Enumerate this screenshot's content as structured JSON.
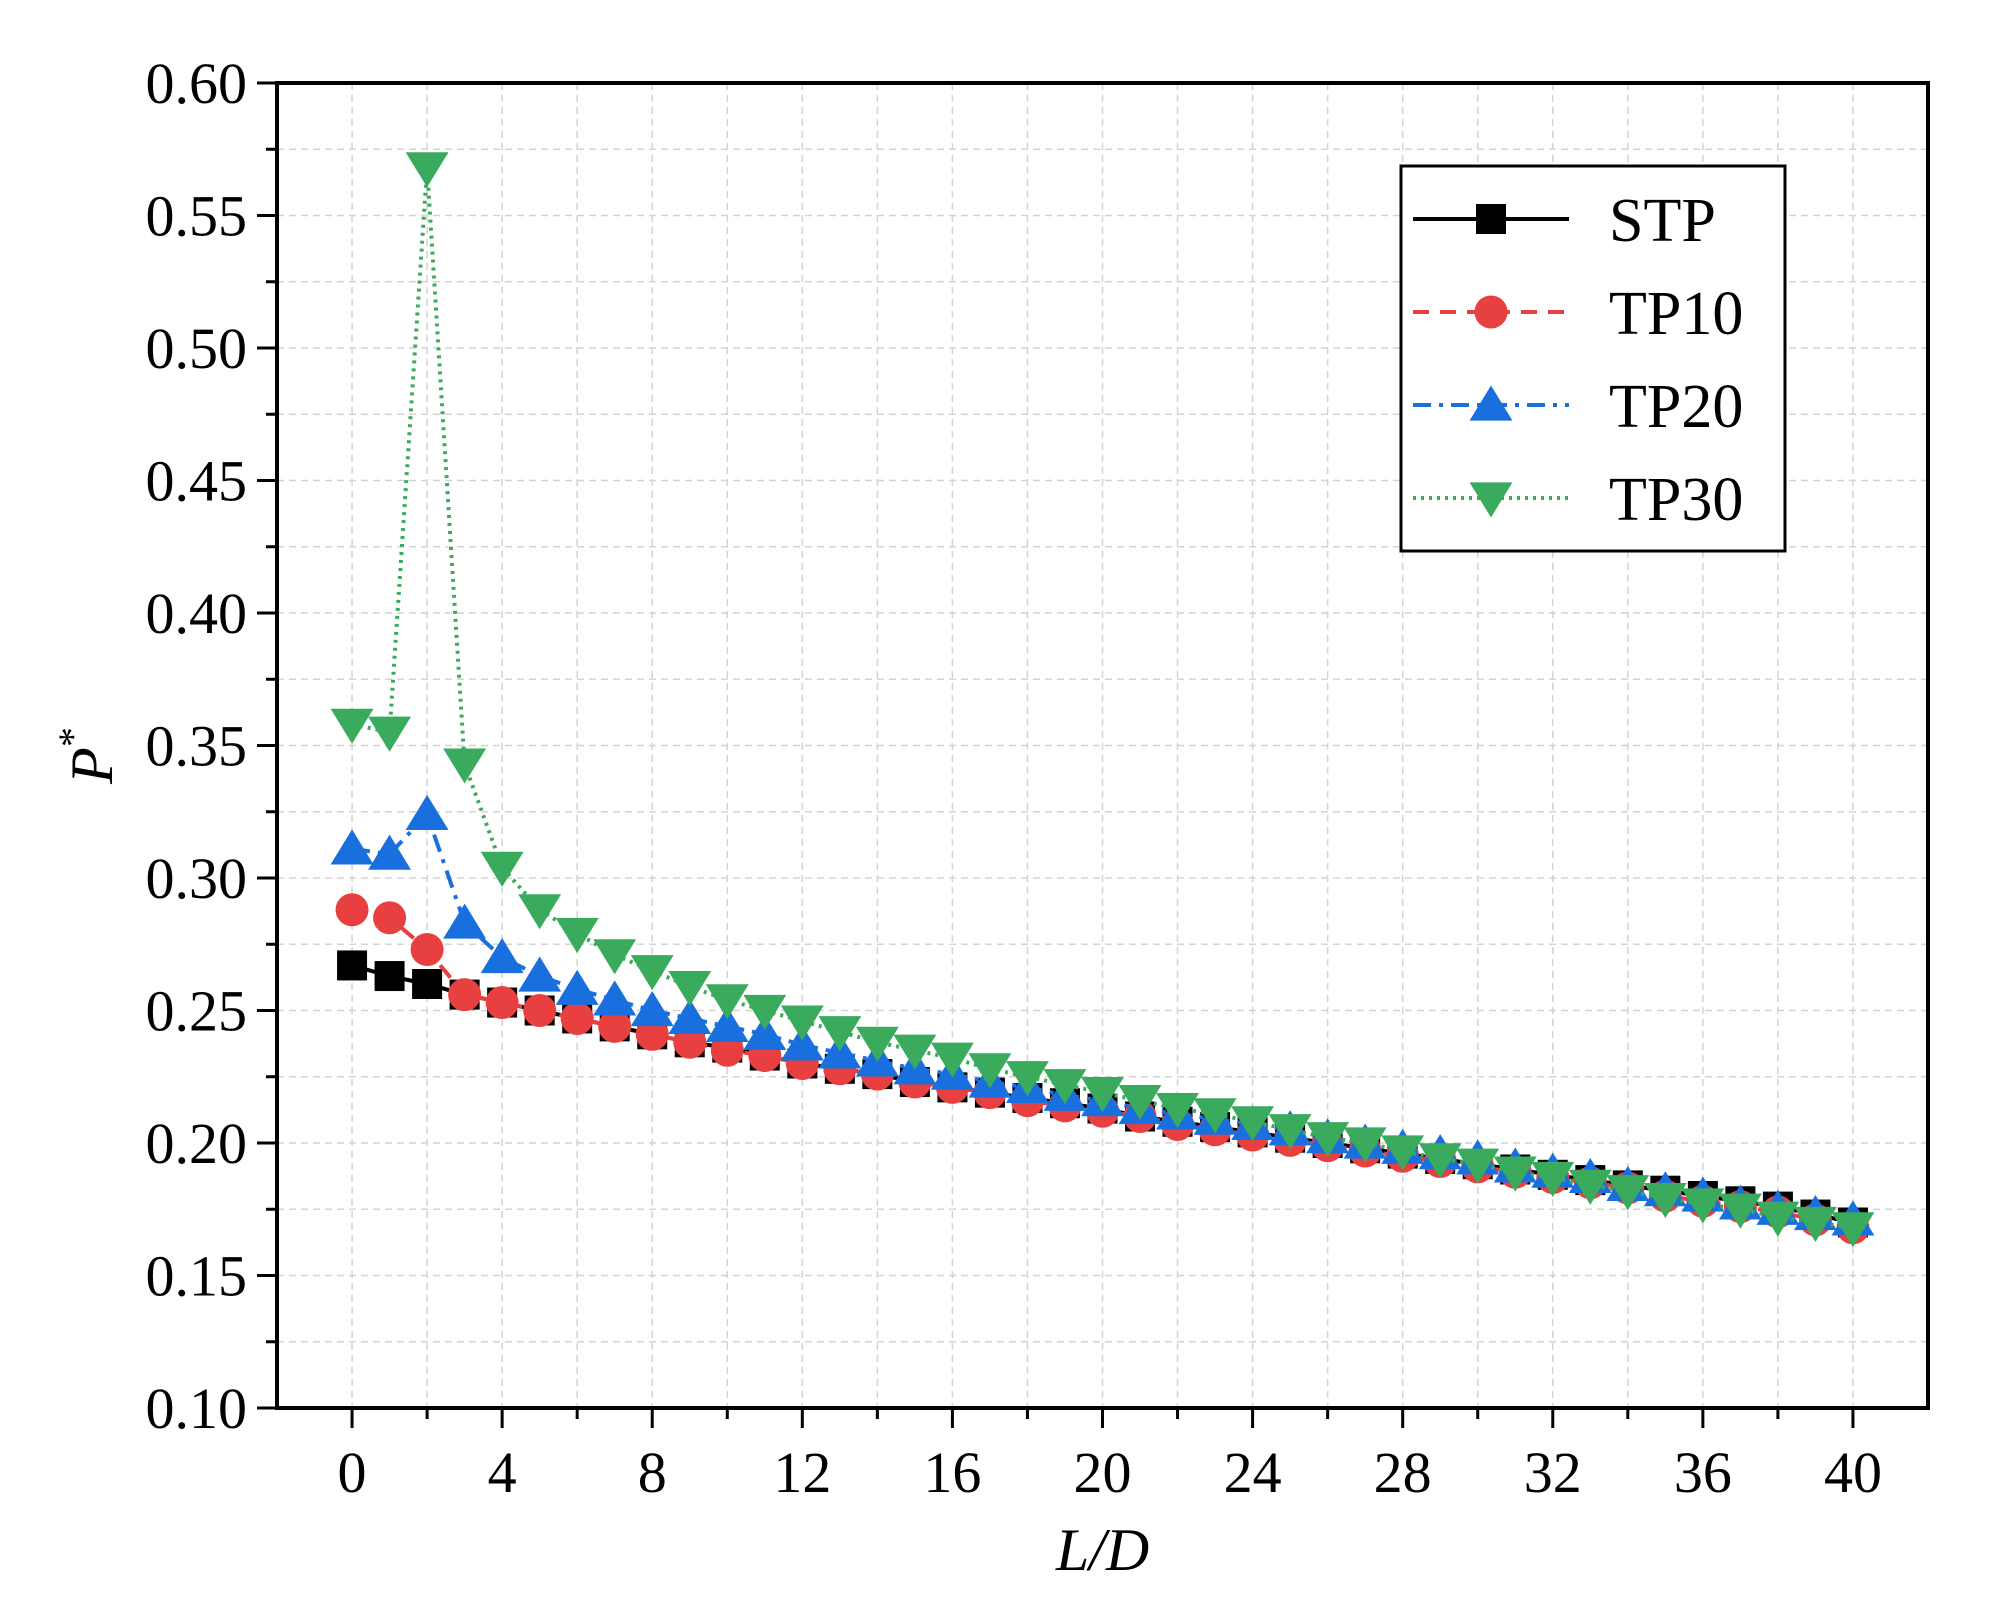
{
  "chart_data": {
    "type": "line",
    "title": "",
    "xlabel": "L/D",
    "ylabel": "P",
    "ylabel_superscript": "*",
    "xlim": [
      -2,
      42
    ],
    "ylim": [
      0.1,
      0.6
    ],
    "x_ticks": [
      "0",
      "4",
      "8",
      "12",
      "16",
      "20",
      "24",
      "28",
      "32",
      "36",
      "40"
    ],
    "y_ticks": [
      "0.10",
      "0.15",
      "0.20",
      "0.25",
      "0.30",
      "0.35",
      "0.40",
      "0.45",
      "0.50",
      "0.55",
      "0.60"
    ],
    "grid": true,
    "legend_position": "top-right",
    "x": [
      0,
      1,
      2,
      3,
      4,
      5,
      6,
      7,
      8,
      9,
      10,
      11,
      12,
      13,
      14,
      15,
      16,
      17,
      18,
      19,
      20,
      21,
      22,
      23,
      24,
      25,
      26,
      27,
      28,
      29,
      30,
      31,
      32,
      33,
      34,
      35,
      36,
      37,
      38,
      39,
      40
    ],
    "series": [
      {
        "name": "STP",
        "color": "#000000",
        "marker": "square",
        "line": "solid",
        "values": [
          0.267,
          0.263,
          0.26,
          0.256,
          0.253,
          0.25,
          0.247,
          0.244,
          0.241,
          0.238,
          0.236,
          0.233,
          0.23,
          0.228,
          0.226,
          0.223,
          0.221,
          0.219,
          0.217,
          0.215,
          0.213,
          0.21,
          0.208,
          0.206,
          0.204,
          0.202,
          0.2,
          0.198,
          0.196,
          0.194,
          0.192,
          0.19,
          0.188,
          0.186,
          0.184,
          0.182,
          0.18,
          0.178,
          0.176,
          0.173,
          0.17
        ]
      },
      {
        "name": "TP10",
        "color": "#e84040",
        "marker": "circle",
        "line": "dashed",
        "values": [
          0.288,
          0.285,
          0.273,
          0.256,
          0.253,
          0.25,
          0.247,
          0.244,
          0.241,
          0.238,
          0.235,
          0.233,
          0.23,
          0.228,
          0.226,
          0.223,
          0.221,
          0.219,
          0.216,
          0.214,
          0.212,
          0.21,
          0.207,
          0.205,
          0.203,
          0.201,
          0.199,
          0.197,
          0.195,
          0.193,
          0.191,
          0.189,
          0.187,
          0.185,
          0.183,
          0.18,
          0.178,
          0.176,
          0.174,
          0.171,
          0.168
        ]
      },
      {
        "name": "TP20",
        "color": "#1a6fdf",
        "marker": "triangle-up",
        "line": "dashdot",
        "values": [
          0.311,
          0.309,
          0.324,
          0.283,
          0.27,
          0.263,
          0.258,
          0.254,
          0.25,
          0.247,
          0.244,
          0.241,
          0.237,
          0.234,
          0.231,
          0.228,
          0.226,
          0.223,
          0.221,
          0.218,
          0.216,
          0.213,
          0.211,
          0.209,
          0.207,
          0.205,
          0.202,
          0.2,
          0.198,
          0.196,
          0.194,
          0.191,
          0.189,
          0.187,
          0.184,
          0.182,
          0.18,
          0.177,
          0.175,
          0.173,
          0.171
        ]
      },
      {
        "name": "TP30",
        "color": "#3aaa5c",
        "marker": "triangle-down",
        "line": "dotted",
        "values": [
          0.358,
          0.355,
          0.568,
          0.343,
          0.304,
          0.288,
          0.279,
          0.271,
          0.265,
          0.259,
          0.254,
          0.25,
          0.246,
          0.242,
          0.238,
          0.235,
          0.232,
          0.228,
          0.225,
          0.222,
          0.219,
          0.216,
          0.213,
          0.211,
          0.208,
          0.205,
          0.202,
          0.2,
          0.197,
          0.194,
          0.192,
          0.189,
          0.187,
          0.184,
          0.182,
          0.179,
          0.177,
          0.175,
          0.172,
          0.17,
          0.168
        ]
      }
    ]
  }
}
